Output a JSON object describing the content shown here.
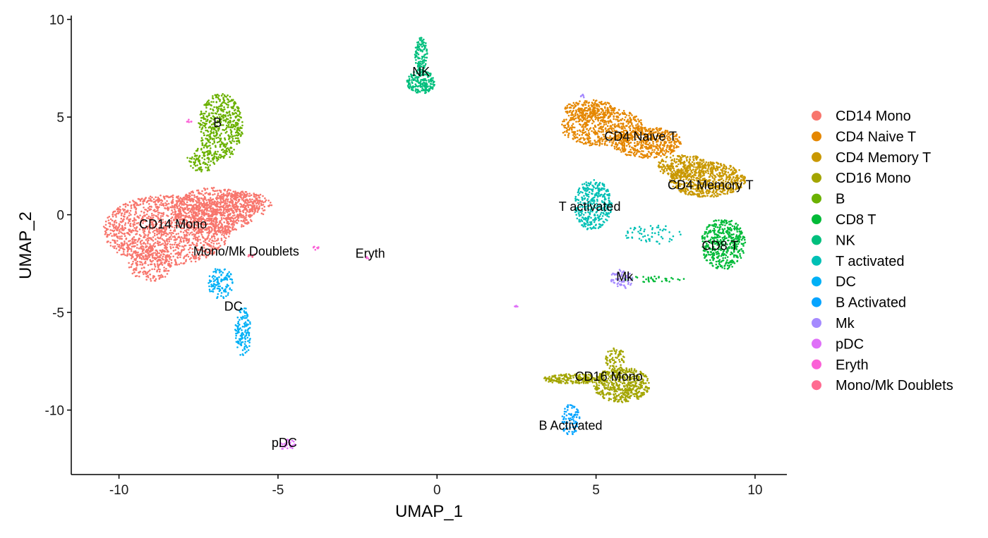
{
  "chart_data": {
    "type": "scatter",
    "title": "",
    "xlabel": "UMAP_1",
    "ylabel": "UMAP_2",
    "xlim": [
      -11.5,
      11.0
    ],
    "ylim": [
      -13.3,
      10.2
    ],
    "xticks": [
      -10,
      -5,
      0,
      5,
      10
    ],
    "yticks": [
      -10,
      -5,
      0,
      5,
      10
    ],
    "xtick_labels": [
      "-10",
      "-5",
      "0",
      "5",
      "10"
    ],
    "ytick_labels": [
      "-10",
      "-5",
      "0",
      "5",
      "10"
    ],
    "grid": false,
    "legend_position": "right",
    "series": [
      {
        "name": "CD14 Mono",
        "color": "#F8766D",
        "label_pos": [
          -8.3,
          -0.7
        ],
        "regions": [
          {
            "cx": -8.5,
            "cy": -0.8,
            "rx": 2.0,
            "ry": 1.8,
            "n": 1400
          },
          {
            "cx": -7.0,
            "cy": 0.2,
            "rx": 1.3,
            "ry": 1.2,
            "n": 700
          },
          {
            "cx": -9.0,
            "cy": -2.5,
            "rx": 0.7,
            "ry": 0.9,
            "n": 200
          },
          {
            "cx": -6.2,
            "cy": 0.5,
            "rx": 1.0,
            "ry": 0.7,
            "n": 300
          }
        ]
      },
      {
        "name": "CD4 Naive T",
        "color": "#E58700",
        "label_pos": [
          6.4,
          3.8
        ],
        "regions": [
          {
            "cx": 5.2,
            "cy": 4.5,
            "rx": 1.3,
            "ry": 1.0,
            "n": 600
          },
          {
            "cx": 6.6,
            "cy": 3.7,
            "rx": 1.1,
            "ry": 0.8,
            "n": 500
          },
          {
            "cx": 4.8,
            "cy": 5.4,
            "rx": 0.8,
            "ry": 0.5,
            "n": 200
          }
        ]
      },
      {
        "name": "CD4 Memory T",
        "color": "#C99800",
        "label_pos": [
          8.6,
          1.3
        ],
        "regions": [
          {
            "cx": 8.5,
            "cy": 1.8,
            "rx": 1.2,
            "ry": 0.9,
            "n": 700
          },
          {
            "cx": 7.7,
            "cy": 2.5,
            "rx": 0.8,
            "ry": 0.6,
            "n": 250
          }
        ]
      },
      {
        "name": "CD16 Mono",
        "color": "#A3A500",
        "label_pos": [
          5.4,
          -8.5
        ],
        "regions": [
          {
            "cx": 5.8,
            "cy": -8.7,
            "rx": 0.9,
            "ry": 0.9,
            "n": 500
          },
          {
            "cx": 4.3,
            "cy": -8.4,
            "rx": 1.0,
            "ry": 0.25,
            "n": 200
          },
          {
            "cx": 5.6,
            "cy": -7.4,
            "rx": 0.3,
            "ry": 0.7,
            "n": 80
          }
        ]
      },
      {
        "name": "B",
        "color": "#6BB100",
        "label_pos": [
          -6.9,
          4.5
        ],
        "regions": [
          {
            "cx": -6.8,
            "cy": 4.5,
            "rx": 0.7,
            "ry": 1.7,
            "n": 500
          },
          {
            "cx": -7.4,
            "cy": 2.8,
            "rx": 0.5,
            "ry": 0.6,
            "n": 100
          }
        ]
      },
      {
        "name": "CD8 T",
        "color": "#00BA38",
        "label_pos": [
          8.9,
          -1.8
        ],
        "regions": [
          {
            "cx": 9.0,
            "cy": -1.5,
            "rx": 0.7,
            "ry": 1.3,
            "n": 450
          },
          {
            "cx": 6.8,
            "cy": -3.3,
            "rx": 1.0,
            "ry": 0.15,
            "n": 40
          }
        ]
      },
      {
        "name": "NK",
        "color": "#00BF7D",
        "label_pos": [
          -0.5,
          7.1
        ],
        "regions": [
          {
            "cx": -0.5,
            "cy": 6.8,
            "rx": 0.45,
            "ry": 0.6,
            "n": 200
          },
          {
            "cx": -0.5,
            "cy": 8.2,
            "rx": 0.2,
            "ry": 0.9,
            "n": 120
          }
        ]
      },
      {
        "name": "T activated",
        "color": "#00C0B5",
        "label_pos": [
          4.8,
          0.2
        ],
        "regions": [
          {
            "cx": 4.9,
            "cy": 0.5,
            "rx": 0.6,
            "ry": 1.3,
            "n": 350
          },
          {
            "cx": 6.8,
            "cy": -1.0,
            "rx": 0.9,
            "ry": 0.5,
            "n": 60
          }
        ]
      },
      {
        "name": "DC",
        "color": "#00B0F6",
        "label_pos": [
          -6.4,
          -4.9
        ],
        "regions": [
          {
            "cx": -6.8,
            "cy": -3.5,
            "rx": 0.4,
            "ry": 0.8,
            "n": 120
          },
          {
            "cx": -6.1,
            "cy": -6.0,
            "rx": 0.25,
            "ry": 1.3,
            "n": 130
          }
        ]
      },
      {
        "name": "B Activated",
        "color": "#06A4FF",
        "label_pos": [
          4.2,
          -11.0
        ],
        "regions": [
          {
            "cx": 4.2,
            "cy": -10.5,
            "rx": 0.3,
            "ry": 0.8,
            "n": 90
          }
        ]
      },
      {
        "name": "Mk",
        "color": "#A58AFF",
        "label_pos": [
          5.9,
          -3.4
        ],
        "regions": [
          {
            "cx": 5.8,
            "cy": -3.3,
            "rx": 0.35,
            "ry": 0.5,
            "n": 70
          },
          {
            "cx": 4.6,
            "cy": 6.1,
            "rx": 0.1,
            "ry": 0.1,
            "n": 6
          }
        ]
      },
      {
        "name": "pDC",
        "color": "#DF70F8",
        "label_pos": [
          -4.8,
          -11.9
        ],
        "regions": [
          {
            "cx": -4.7,
            "cy": -11.8,
            "rx": 0.25,
            "ry": 0.3,
            "n": 35
          },
          {
            "cx": 2.5,
            "cy": -4.7,
            "rx": 0.07,
            "ry": 0.05,
            "n": 6
          }
        ]
      },
      {
        "name": "Eryth",
        "color": "#FB61D7",
        "label_pos": [
          -2.1,
          -2.2
        ],
        "regions": [
          {
            "cx": -3.8,
            "cy": -1.7,
            "rx": 0.1,
            "ry": 0.1,
            "n": 8
          },
          {
            "cx": -2.2,
            "cy": -2.2,
            "rx": 0.1,
            "ry": 0.08,
            "n": 4
          },
          {
            "cx": -7.8,
            "cy": 4.8,
            "rx": 0.1,
            "ry": 0.1,
            "n": 6
          }
        ]
      },
      {
        "name": "Mono/Mk Doublets",
        "color": "#FF6C91",
        "label_pos": [
          -6.0,
          -2.1
        ],
        "regions": [
          {
            "cx": -5.8,
            "cy": -2.1,
            "rx": 0.15,
            "ry": 0.1,
            "n": 8
          }
        ]
      }
    ]
  }
}
